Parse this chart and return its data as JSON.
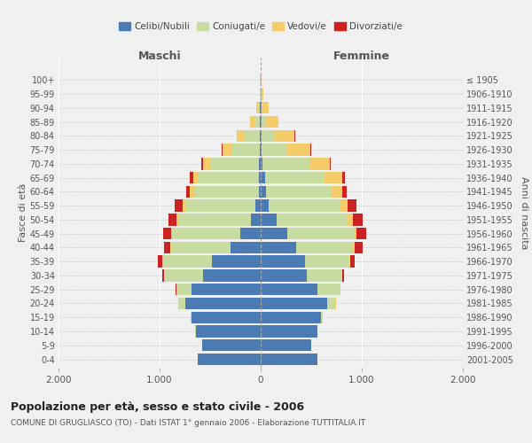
{
  "age_groups": [
    "0-4",
    "5-9",
    "10-14",
    "15-19",
    "20-24",
    "25-29",
    "30-34",
    "35-39",
    "40-44",
    "45-49",
    "50-54",
    "55-59",
    "60-64",
    "65-69",
    "70-74",
    "75-79",
    "80-84",
    "85-89",
    "90-94",
    "95-99",
    "100+"
  ],
  "birth_years": [
    "2001-2005",
    "1996-2000",
    "1991-1995",
    "1986-1990",
    "1981-1985",
    "1976-1980",
    "1971-1975",
    "1966-1970",
    "1961-1965",
    "1956-1960",
    "1951-1955",
    "1946-1950",
    "1941-1945",
    "1936-1940",
    "1931-1935",
    "1926-1930",
    "1921-1925",
    "1916-1920",
    "1911-1915",
    "1906-1910",
    "≤ 1905"
  ],
  "colors": {
    "celibi": "#4a7bb5",
    "coniugati": "#c8dba0",
    "vedovi": "#f5cc6a",
    "divorziati": "#cc2222"
  },
  "maschi": {
    "celibi": [
      620,
      580,
      640,
      680,
      750,
      680,
      570,
      480,
      300,
      200,
      100,
      50,
      20,
      20,
      20,
      10,
      5,
      5,
      5,
      3,
      2
    ],
    "coniugati": [
      2,
      3,
      5,
      10,
      60,
      150,
      380,
      490,
      590,
      680,
      720,
      700,
      640,
      590,
      470,
      270,
      150,
      60,
      20,
      5,
      2
    ],
    "vedovi": [
      0,
      0,
      0,
      0,
      3,
      5,
      5,
      5,
      5,
      5,
      10,
      20,
      40,
      60,
      80,
      100,
      80,
      40,
      15,
      5,
      1
    ],
    "divorziati": [
      0,
      0,
      0,
      2,
      5,
      5,
      20,
      40,
      60,
      80,
      80,
      80,
      40,
      30,
      15,
      8,
      5,
      0,
      0,
      0,
      0
    ]
  },
  "femmine": {
    "celibi": [
      560,
      500,
      560,
      600,
      660,
      560,
      460,
      440,
      350,
      260,
      160,
      80,
      50,
      40,
      20,
      10,
      5,
      5,
      5,
      3,
      2
    ],
    "coniugati": [
      2,
      3,
      5,
      10,
      80,
      220,
      340,
      440,
      560,
      660,
      700,
      700,
      640,
      590,
      460,
      250,
      130,
      50,
      15,
      5,
      1
    ],
    "vedovi": [
      0,
      0,
      0,
      1,
      3,
      8,
      8,
      10,
      20,
      30,
      50,
      80,
      120,
      180,
      200,
      230,
      200,
      120,
      60,
      20,
      5
    ],
    "divorziati": [
      0,
      0,
      0,
      2,
      5,
      5,
      20,
      40,
      80,
      90,
      100,
      90,
      40,
      20,
      10,
      8,
      5,
      0,
      0,
      0,
      0
    ]
  },
  "title": "Popolazione per età, sesso e stato civile - 2006",
  "subtitle": "COMUNE DI GRUGLIASCO (TO) - Dati ISTAT 1° gennaio 2006 - Elaborazione TUTTITALIA.IT",
  "xlabel_left": "Maschi",
  "xlabel_right": "Femmine",
  "ylabel_left": "Fasce di età",
  "ylabel_right": "Anni di nascita",
  "xlim": 2000,
  "xticklabels": [
    "2.000",
    "1.000",
    "0",
    "1.000",
    "2.000"
  ],
  "legend_labels": [
    "Celibi/Nubili",
    "Coniugati/e",
    "Vedovi/e",
    "Divorziati/e"
  ],
  "bg_color": "#f0f0f0",
  "bar_height": 0.85
}
